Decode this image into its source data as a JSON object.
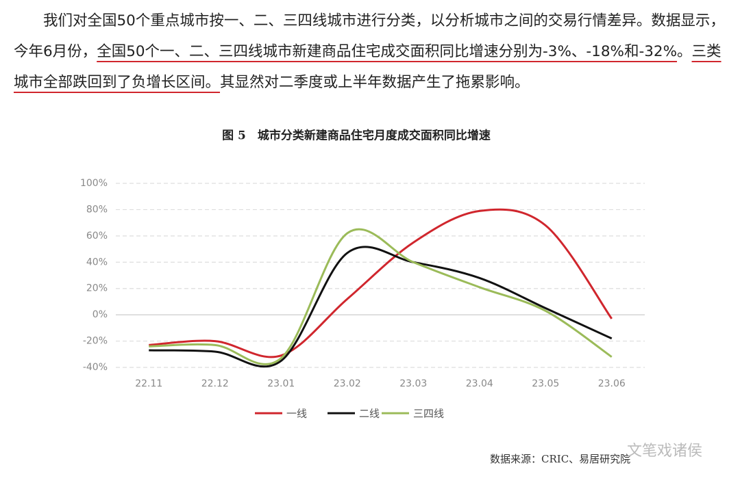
{
  "paragraph": {
    "text_1": "我们对全国50个重点城市按一、二、三四线城市进行分类，以分析城市之间的交易行情差异。数据显示，今年6月份，",
    "underlined_1": "全国50个一、二、三四线城市新建商品住宅成交面积同比增速分别为-3%、-18%和-32%",
    "text_2": "。",
    "underlined_2": "三类城市全部跌回到了负增长区间。",
    "text_3": "其显然对二季度或上半年数据产生了拖累影响。"
  },
  "chart_data": {
    "type": "line",
    "title": "图 5　城市分类新建商品住宅月度成交面积同比增速",
    "categories": [
      "22.11",
      "22.12",
      "23.01",
      "23.02",
      "23.03",
      "23.04",
      "23.05",
      "23.06"
    ],
    "series": [
      {
        "name": "一线",
        "color": "#d0262d",
        "values": [
          -23,
          -20,
          -31,
          12,
          55,
          79,
          68,
          -3
        ]
      },
      {
        "name": "二线",
        "color": "#111111",
        "values": [
          -27,
          -28,
          -35,
          47,
          40,
          28,
          5,
          -18
        ]
      },
      {
        "name": "三四线",
        "color": "#9bbb59",
        "values": [
          -24,
          -23,
          -33,
          62,
          40,
          21,
          3,
          -32
        ]
      }
    ],
    "ylim": [
      -40,
      100
    ],
    "yticks": [
      {
        "value": -40,
        "label": "-40%"
      },
      {
        "value": -20,
        "label": "-20%"
      },
      {
        "value": 0,
        "label": "0%"
      },
      {
        "value": 20,
        "label": "20%"
      },
      {
        "value": 40,
        "label": "40%"
      },
      {
        "value": 60,
        "label": "60%"
      },
      {
        "value": 80,
        "label": "80%"
      },
      {
        "value": 100,
        "label": "100%"
      }
    ],
    "grid": true,
    "smooth": true,
    "legend": "bottom",
    "source": "数据来源：CRIC、易居研究院"
  },
  "watermark": "文笔戏诸侯"
}
